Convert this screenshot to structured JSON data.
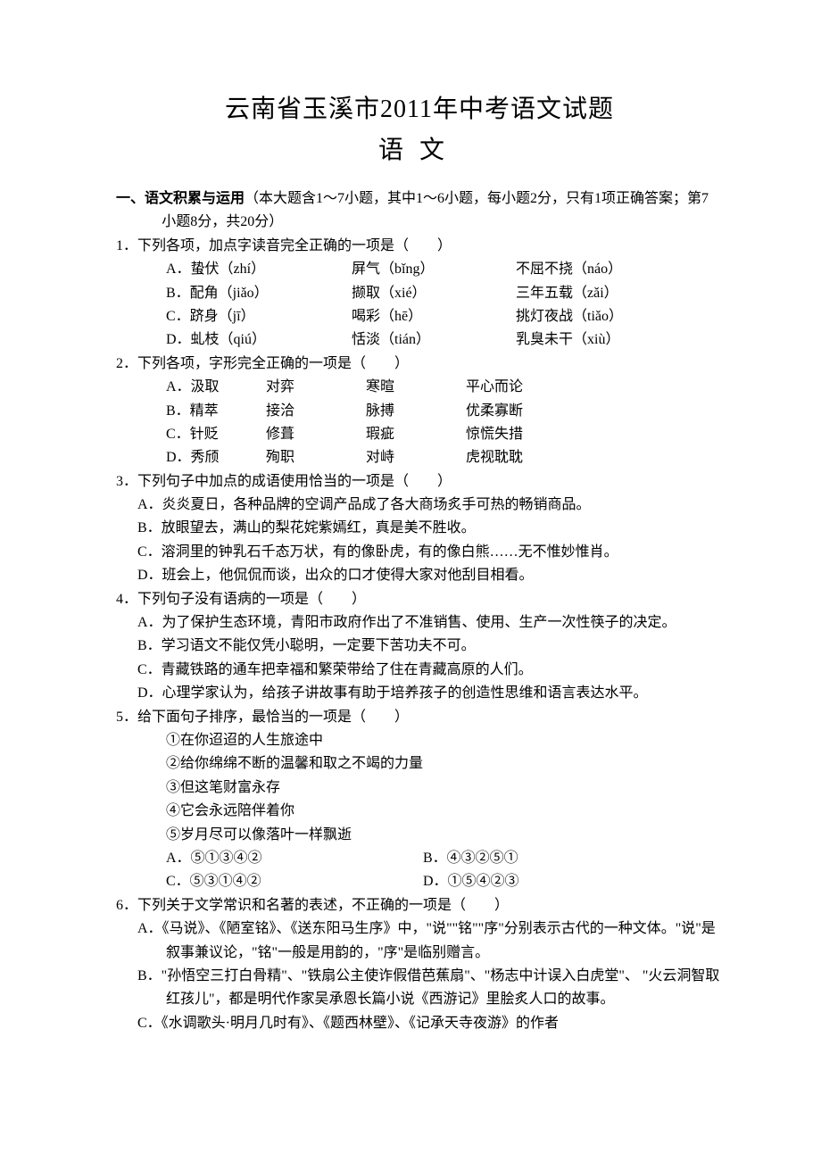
{
  "title": "云南省玉溪市2011年中考语文试题",
  "subtitle": "语文",
  "section1": {
    "label": "一、语文积累与运用",
    "note": "（本大题含1～7小题，其中1～6小题，每小题2分，只有1项正确答案；第7小题8分，共20分）"
  },
  "q1": {
    "stem": "1．下列各项，加点字读音完全正确的一项是（　　）",
    "opts": [
      {
        "l": "A．蛰伏（zhí）",
        "m": "屏气（bǐng）",
        "r": "不屈不挠（náo）"
      },
      {
        "l": "B．配角（jiǎo）",
        "m": "撷取（xié）",
        "r": "三年五载（zǎi）"
      },
      {
        "l": "C．跻身（jī）",
        "m": "喝彩（hē）",
        "r": "挑灯夜战（tiǎo）"
      },
      {
        "l": "D．虬枝（qiú）",
        "m": "恬淡（tián）",
        "r": "乳臭未干（xiù）"
      }
    ]
  },
  "q2": {
    "stem": "2．下列各项，字形完全正确的一项是（　　）",
    "opts": [
      {
        "a": "A．汲取",
        "b": "对弈",
        "c": "寒暄",
        "d": "平心而论"
      },
      {
        "a": "B．精萃",
        "b": "接洽",
        "c": "脉搏",
        "d": "优柔寡断"
      },
      {
        "a": "C．针贬",
        "b": "修葺",
        "c": "瑕疵",
        "d": "惊慌失措"
      },
      {
        "a": "D．秀颀",
        "b": "殉职",
        "c": "对峙",
        "d": "虎视耽耽"
      }
    ]
  },
  "q3": {
    "stem": "3．下列句子中加点的成语使用恰当的一项是（　　）",
    "opts": [
      "A．炎炎夏日，各种品牌的空调产品成了各大商场炙手可热的畅销商品。",
      "B．放眼望去，满山的梨花姹紫嫣红，真是美不胜收。",
      "C．溶洞里的钟乳石千态万状，有的像卧虎，有的像白熊……无不惟妙惟肖。",
      "D．班会上，他侃侃而谈，出众的口才使得大家对他刮目相看。"
    ]
  },
  "q4": {
    "stem": "4．下列句子没有语病的一项是（　　）",
    "opts": [
      "A．为了保护生态环境，青阳市政府作出了不准销售、使用、生产一次性筷子的决定。",
      "B．学习语文不能仅凭小聪明，一定要下苦功夫不可。",
      "C．青藏铁路的通车把幸福和繁荣带给了住在青藏高原的人们。",
      "D．心理学家认为，给孩子讲故事有助于培养孩子的创造性思维和语言表达水平。"
    ]
  },
  "q5": {
    "stem": "5．给下面句子排序，最恰当的一项是（　　）",
    "lines": [
      "①在你迢迢的人生旅途中",
      "②给你绵绵不断的温馨和取之不竭的力量",
      "③但这笔财富永存",
      "④它会永远陪伴着你",
      "⑤岁月尽可以像落叶一样飘逝"
    ],
    "choices": [
      {
        "l": "A．⑤①③④②",
        "r": "B．④③②⑤①"
      },
      {
        "l": "C．⑤③①④②",
        "r": "D．①⑤④②③"
      }
    ]
  },
  "q6": {
    "stem": "6．下列关于文学常识和名著的表述，不正确的一项是（　　）",
    "opts": [
      "A．《马说》、《陋室铭》、《送东阳马生序》中，\"说\"\"铭\"\"序\"分别表示古代的一种文体。\"说\"是叙事兼议论，\"铭\"一般是用韵的，\"序\"是临别赠言。",
      "B．\"孙悟空三打白骨精\"、\"铁扇公主使诈假借芭蕉扇\"、\"杨志中计误入白虎堂\"、 \"火云洞智取红孩儿\"，都是明代作家吴承恩长篇小说《西游记》里脍炙人口的故事。",
      "C．《水调歌头·明月几时有》、《题西林壁》、《记承天寺夜游》的作者"
    ]
  }
}
